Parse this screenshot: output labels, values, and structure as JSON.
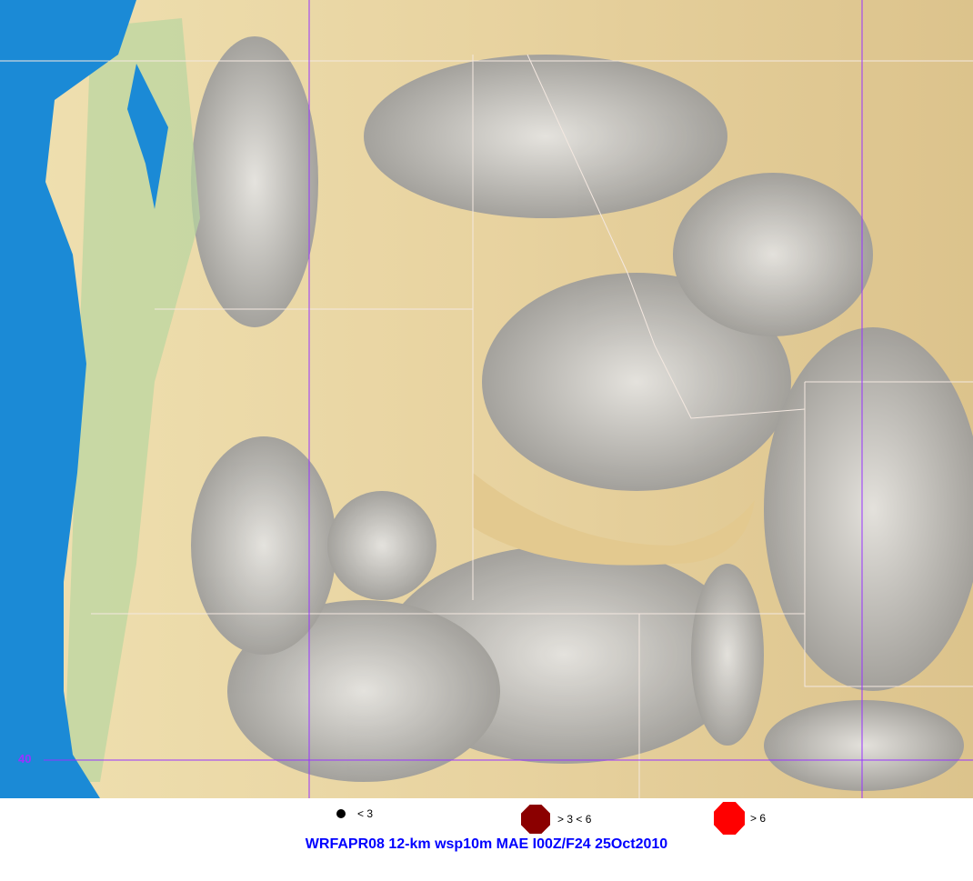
{
  "map": {
    "gridline_label": "40",
    "colors": {
      "ocean": "#1b8ad6",
      "lowland": "#e3c98f",
      "mountain": "#a8a8a8",
      "coastal": "#8fc48a",
      "grid": "#9933ff"
    }
  },
  "legend": [
    {
      "symbol": "black-dot",
      "label": "< 3",
      "color": "#000000"
    },
    {
      "symbol": "dark-red-octagon",
      "label": "> 3 < 6",
      "color": "#8b0000"
    },
    {
      "symbol": "red-octagon",
      "label": "> 6",
      "color": "#ff0000"
    }
  ],
  "title": "WRFAPR08 12-km wsp10m MAE I00Z/F24 25Oct2010"
}
